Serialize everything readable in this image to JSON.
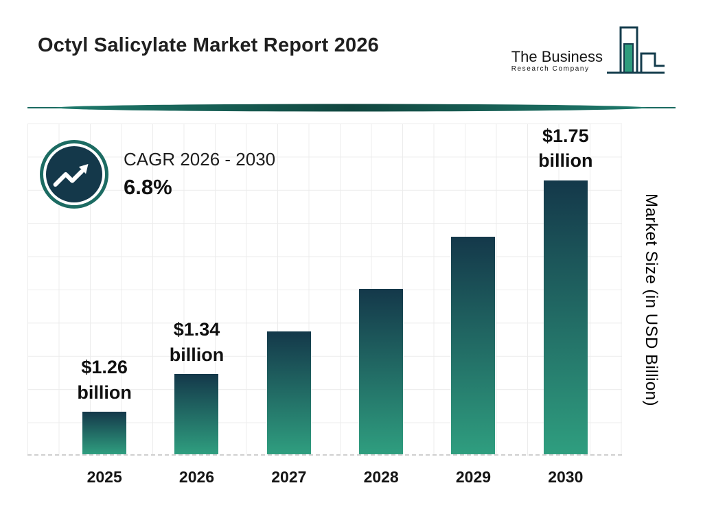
{
  "title": "Octyl Salicylate Market Report 2026",
  "logo": {
    "name_line": "The Business",
    "sub_line": "Research Company"
  },
  "cagr": {
    "label": "CAGR 2026 - 2030",
    "value": "6.8%"
  },
  "y_axis_label": "Market Size (in USD Billion)",
  "colors": {
    "bar_top": "#14384A",
    "bar_bottom": "#2F9E7F",
    "accent_teal": "#1C6B62",
    "navy": "#143C4C"
  },
  "chart_data": {
    "type": "bar",
    "title": "Octyl Salicylate Market Report 2026",
    "categories": [
      "2025",
      "2026",
      "2027",
      "2028",
      "2029",
      "2030"
    ],
    "values": [
      1.26,
      1.34,
      1.43,
      1.52,
      1.63,
      1.75
    ],
    "unit": "USD Billion",
    "xlabel": "",
    "ylabel": "Market Size (in USD Billion)",
    "ylim": [
      1.17,
      1.87
    ],
    "grid": true,
    "legend": false,
    "bar_labels": [
      {
        "line1": "$1.26",
        "line2": "billion"
      },
      {
        "line1": "$1.34",
        "line2": "billion"
      },
      null,
      null,
      null,
      {
        "line1": "$1.75",
        "line2": "billion"
      }
    ]
  }
}
